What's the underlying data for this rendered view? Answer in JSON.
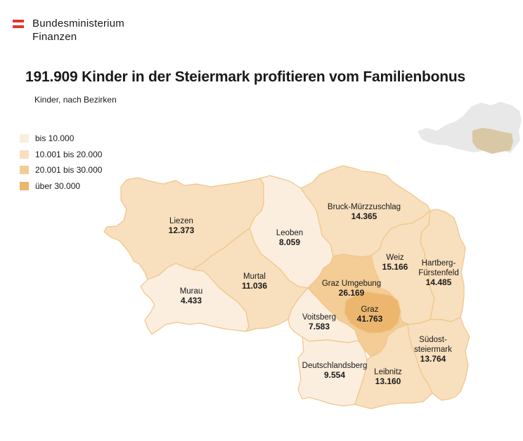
{
  "header": {
    "org_line1": "Bundesministerium",
    "org_line2": "Finanzen"
  },
  "title": "191.909 Kinder in der Steiermark profitieren vom Familienbonus",
  "subtitle": "Kinder, nach Bezirken",
  "colors": {
    "flag_red": "#e3342f",
    "class_1": "#fbeedf",
    "class_2": "#f8dfbd",
    "class_3": "#f3cc96",
    "class_4": "#ecb66e",
    "inset_austria": "#e8e8e8",
    "inset_steiermark": "#d9c8a6"
  },
  "legend": [
    {
      "label": "bis 10.000",
      "color": "#fbeedf"
    },
    {
      "label": "10.001 bis 20.000",
      "color": "#f8dfbd"
    },
    {
      "label": "20.001 bis 30.000",
      "color": "#f3cc96"
    },
    {
      "label": "über 30.000",
      "color": "#ecb66e"
    }
  ],
  "districts": [
    {
      "id": "liezen",
      "name": [
        "Liezen"
      ],
      "value": "12.373",
      "color": "#f8dfbd"
    },
    {
      "id": "leoben",
      "name": [
        "Leoben"
      ],
      "value": "8.059",
      "color": "#fbeedf"
    },
    {
      "id": "bruck",
      "name": [
        "Bruck-Mürzzuschlag"
      ],
      "value": "14.365",
      "color": "#f8dfbd"
    },
    {
      "id": "weiz",
      "name": [
        "Weiz"
      ],
      "value": "15.166",
      "color": "#f8dfbd"
    },
    {
      "id": "hartberg",
      "name": [
        "Hartberg-",
        "Fürstenfeld"
      ],
      "value": "14.485",
      "color": "#f8dfbd"
    },
    {
      "id": "murau",
      "name": [
        "Murau"
      ],
      "value": "4.433",
      "color": "#fbeedf"
    },
    {
      "id": "murtal",
      "name": [
        "Murtal"
      ],
      "value": "11.036",
      "color": "#f8dfbd"
    },
    {
      "id": "grazumg",
      "name": [
        "Graz Umgebung"
      ],
      "value": "26.169",
      "color": "#f3cc96"
    },
    {
      "id": "graz",
      "name": [
        "Graz"
      ],
      "value": "41.763",
      "color": "#ecb66e"
    },
    {
      "id": "voitsberg",
      "name": [
        "Voitsberg"
      ],
      "value": "7.583",
      "color": "#fbeedf"
    },
    {
      "id": "suedost",
      "name": [
        "Südost-",
        "steiermark"
      ],
      "value": "13.764",
      "color": "#f8dfbd"
    },
    {
      "id": "deutschlandsberg",
      "name": [
        "Deutschlandsberg"
      ],
      "value": "9.554",
      "color": "#fbeedf"
    },
    {
      "id": "leibnitz",
      "name": [
        "Leibnitz"
      ],
      "value": "13.160",
      "color": "#f8dfbd"
    }
  ]
}
